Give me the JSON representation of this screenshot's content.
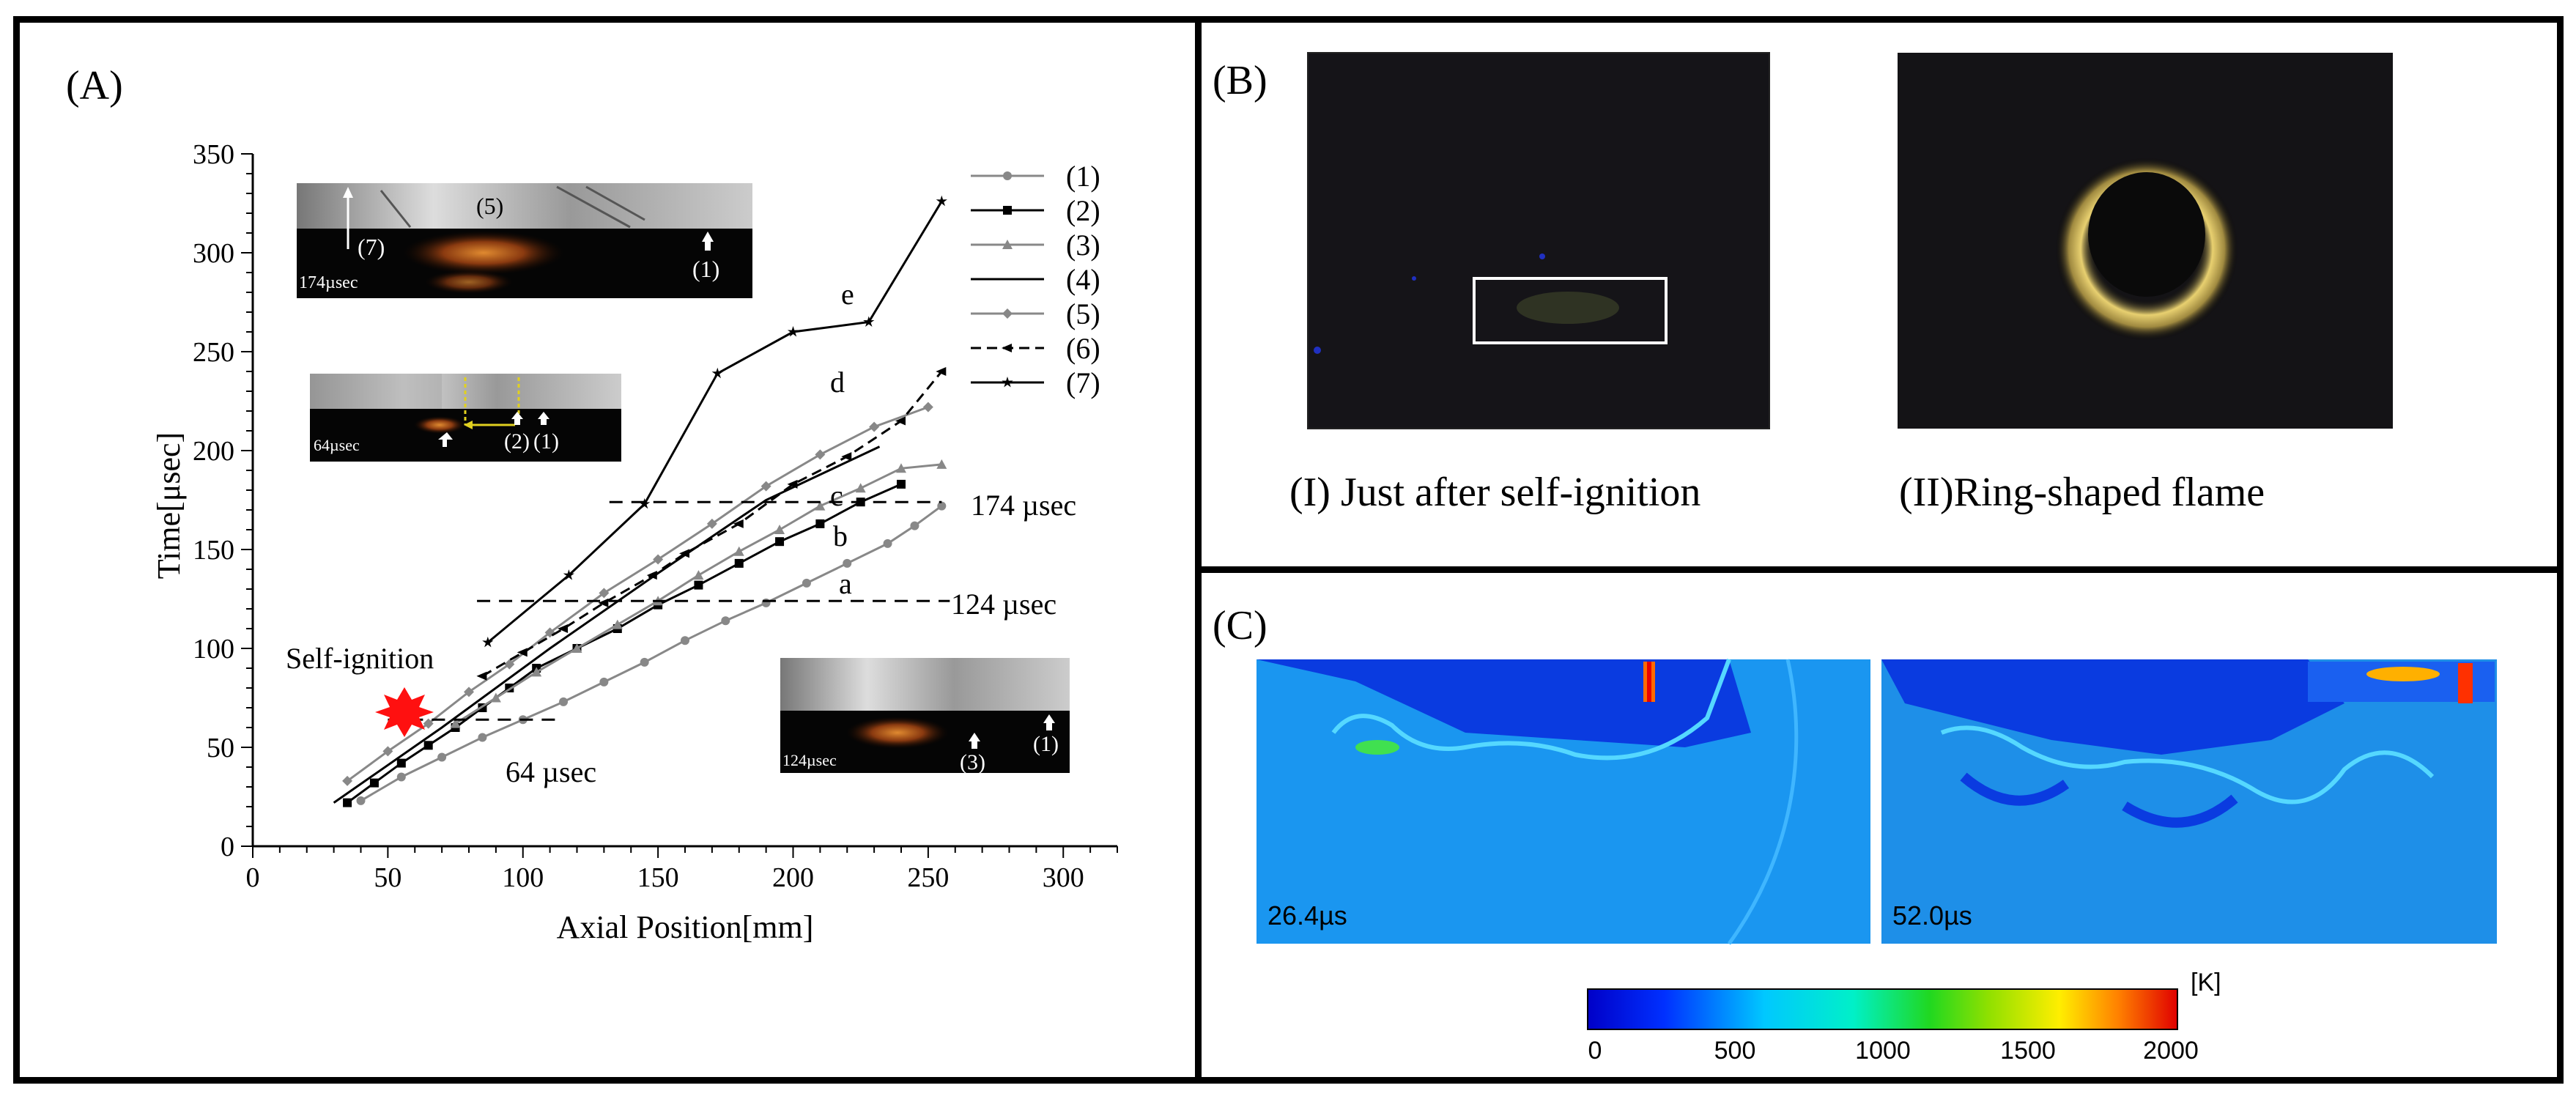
{
  "panels": {
    "a_label": "(A)",
    "b_label": "(B)",
    "c_label": "(C)"
  },
  "chart_data": {
    "type": "line",
    "xlabel": "Axial Position[mm]",
    "ylabel": "Time[μsec]",
    "xlim": [
      0,
      320
    ],
    "ylim": [
      0,
      350
    ],
    "x_ticks": [
      "0",
      "50",
      "100",
      "150",
      "200",
      "250",
      "300"
    ],
    "y_ticks": [
      "0",
      "50",
      "100",
      "150",
      "200",
      "250",
      "300",
      "350"
    ],
    "legend": [
      "(1)",
      "(2)",
      "(3)",
      "(4)",
      "(5)",
      "(6)",
      "(7)"
    ],
    "legend_position": "top-right",
    "series": [
      {
        "name": "(1)",
        "style": "gray-circle",
        "x": [
          40,
          55,
          70,
          85,
          100,
          115,
          130,
          145,
          160,
          175,
          190,
          205,
          220,
          235,
          245,
          255
        ],
        "y": [
          23,
          35,
          45,
          55,
          64,
          73,
          83,
          93,
          104,
          114,
          123,
          133,
          143,
          153,
          162,
          172
        ]
      },
      {
        "name": "(2)",
        "style": "black-square",
        "x": [
          35,
          45,
          55,
          65,
          75,
          85,
          95,
          105,
          120,
          135,
          150,
          165,
          180,
          195,
          210,
          225,
          240
        ],
        "y": [
          22,
          32,
          42,
          51,
          60,
          70,
          80,
          90,
          100,
          110,
          122,
          132,
          143,
          154,
          163,
          174,
          183
        ]
      },
      {
        "name": "(3)",
        "style": "gray-triangle",
        "x": [
          75,
          90,
          105,
          120,
          135,
          150,
          165,
          180,
          195,
          210,
          225,
          240,
          255
        ],
        "y": [
          62,
          75,
          88,
          100,
          112,
          124,
          137,
          149,
          160,
          172,
          181,
          191,
          193
        ]
      },
      {
        "name": "(4)",
        "style": "black-line",
        "x": [
          30,
          70,
          110,
          150,
          190,
          232
        ],
        "y": [
          22,
          60,
          100,
          138,
          175,
          202
        ]
      },
      {
        "name": "(5)",
        "style": "gray-diamond",
        "x": [
          35,
          50,
          65,
          80,
          95,
          110,
          130,
          150,
          170,
          190,
          210,
          230,
          250
        ],
        "y": [
          33,
          48,
          62,
          78,
          92,
          108,
          128,
          145,
          163,
          182,
          198,
          212,
          222
        ]
      },
      {
        "name": "(6)",
        "style": "black-dash",
        "x": [
          85,
          100,
          115,
          130,
          148,
          160,
          180,
          200,
          220,
          240,
          255
        ],
        "y": [
          86,
          98,
          110,
          123,
          137,
          148,
          163,
          183,
          197,
          215,
          240
        ]
      },
      {
        "name": "(7)",
        "style": "black-star",
        "x": [
          87,
          117,
          145,
          172,
          200,
          228,
          255
        ],
        "y": [
          103,
          137,
          173,
          239,
          260,
          265,
          326
        ]
      }
    ],
    "time_markers": [
      {
        "label": "174 µsec",
        "y": 174
      },
      {
        "label": "124 µsec",
        "y": 124
      },
      {
        "label": "64 µsec",
        "y": 64
      }
    ],
    "line_letters": [
      "a",
      "b",
      "c",
      "d",
      "e"
    ],
    "self_ignition_label": "Self-ignition"
  },
  "insets": {
    "top_time": "174µsec",
    "top_marks": [
      "(5)",
      "(7)",
      "(1)"
    ],
    "mid_time": "64µsec",
    "mid_marks": [
      "(2)",
      "(1)"
    ],
    "bottom_time": "124µsec",
    "bottom_marks": [
      "(3)",
      "(1)"
    ]
  },
  "panel_b": {
    "caption_1": "(I) Just after self-ignition",
    "caption_2": "(II)Ring-shaped flame"
  },
  "panel_c": {
    "time_1": "26.4µs",
    "time_2": "52.0µs",
    "unit": "[K]",
    "colorbar_ticks": [
      "0",
      "500",
      "1000",
      "1500",
      "2000"
    ]
  }
}
